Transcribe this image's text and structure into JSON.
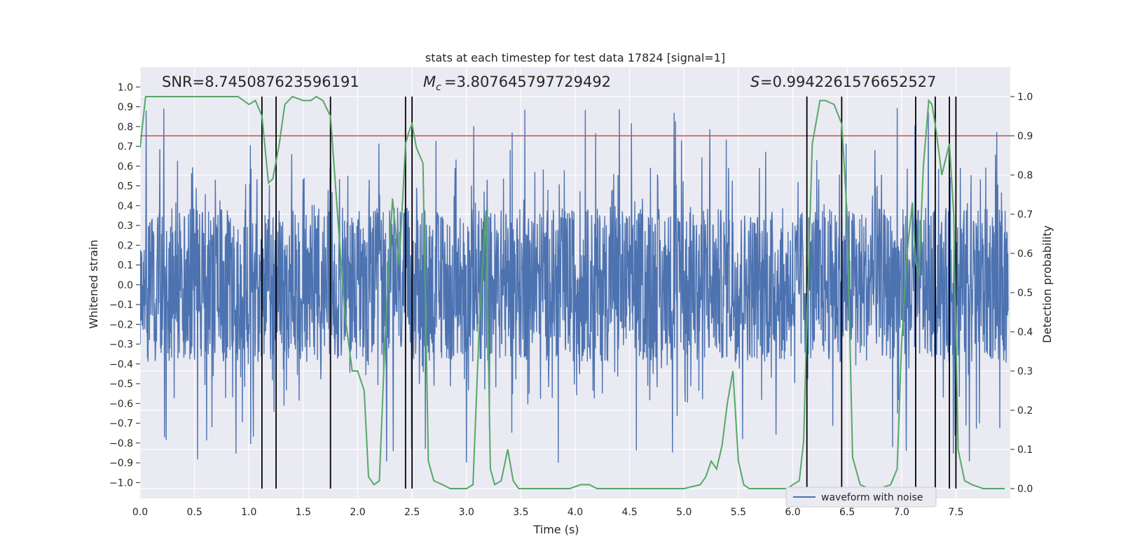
{
  "chart_data": {
    "type": "line",
    "title": "stats at each timestep for test data 17824 [signal=1]",
    "xlabel": "Time (s)",
    "ylabel": "Whitened strain",
    "y2label": "Detection probability",
    "xlim": [
      0.0,
      8.0
    ],
    "ylim": [
      -1.08,
      1.1
    ],
    "y2lim": [
      -0.025,
      1.075
    ],
    "x_ticks": [
      0.0,
      0.5,
      1.0,
      1.5,
      2.0,
      2.5,
      3.0,
      3.5,
      4.0,
      4.5,
      5.0,
      5.5,
      6.0,
      6.5,
      7.0,
      7.5
    ],
    "x_tick_labels": [
      "0.0",
      "0.5",
      "1.0",
      "1.5",
      "2.0",
      "2.5",
      "3.0",
      "3.5",
      "4.0",
      "4.5",
      "5.0",
      "5.5",
      "6.0",
      "6.5",
      "7.0",
      "7.5"
    ],
    "y_ticks": [
      1.0,
      0.9,
      0.8,
      0.7,
      0.6,
      0.5,
      0.4,
      0.3,
      0.2,
      0.1,
      0.0,
      -0.1,
      -0.2,
      -0.3,
      -0.4,
      -0.5,
      -0.6,
      -0.7,
      -0.8,
      -0.9,
      -1.0
    ],
    "y_tick_labels": [
      "1.0",
      "0.9",
      "0.8",
      "0.7",
      "0.6",
      "0.5",
      "0.4",
      "0.3",
      "0.2",
      "0.1",
      "0.0",
      "−0.1",
      "−0.2",
      "−0.3",
      "−0.4",
      "−0.5",
      "−0.6",
      "−0.7",
      "−0.8",
      "−0.9",
      "−1.0"
    ],
    "y2_ticks": [
      1.0,
      0.9,
      0.8,
      0.7,
      0.6,
      0.5,
      0.4,
      0.3,
      0.2,
      0.1,
      0.0
    ],
    "y2_tick_labels": [
      "1.0",
      "0.9",
      "0.8",
      "0.7",
      "0.6",
      "0.5",
      "0.4",
      "0.3",
      "0.2",
      "0.1",
      "0.0"
    ],
    "annotations": {
      "snr": "SNR=8.745087623596191",
      "mc": "=3.807645797729492",
      "s": "=0.9942261576652527"
    },
    "threshold": 0.9,
    "vertical_lines": [
      1.12,
      1.25,
      1.75,
      2.44,
      2.5,
      6.13,
      6.45,
      7.13,
      7.31,
      7.44,
      7.5
    ],
    "series": [
      {
        "name": "waveform with noise",
        "axis": "left",
        "color": "#4c72b0",
        "description": "dense whitened strain trace, amplitude mostly within ±0.4 with spikes to ±0.9"
      },
      {
        "name": "detection probability",
        "axis": "right",
        "color": "#55a868",
        "x": [
          0.0,
          0.05,
          0.1,
          0.25,
          0.5,
          0.75,
          0.9,
          1.0,
          1.06,
          1.12,
          1.18,
          1.22,
          1.28,
          1.33,
          1.4,
          1.5,
          1.57,
          1.62,
          1.68,
          1.75,
          1.82,
          1.88,
          1.95,
          2.0,
          2.06,
          2.1,
          2.15,
          2.2,
          2.25,
          2.32,
          2.38,
          2.42,
          2.44,
          2.47,
          2.5,
          2.54,
          2.6,
          2.65,
          2.7,
          2.78,
          2.85,
          2.92,
          3.0,
          3.06,
          3.12,
          3.18,
          3.22,
          3.26,
          3.32,
          3.38,
          3.43,
          3.48,
          3.56,
          3.65,
          3.75,
          3.85,
          3.95,
          4.05,
          4.13,
          4.2,
          4.3,
          4.4,
          4.6,
          4.8,
          5.0,
          5.15,
          5.2,
          5.25,
          5.3,
          5.35,
          5.4,
          5.45,
          5.5,
          5.55,
          5.6,
          5.7,
          5.85,
          5.95,
          6.0,
          6.06,
          6.1,
          6.13,
          6.18,
          6.25,
          6.3,
          6.38,
          6.45,
          6.5,
          6.55,
          6.62,
          6.7,
          6.8,
          6.9,
          6.96,
          7.0,
          7.05,
          7.1,
          7.13,
          7.16,
          7.2,
          7.25,
          7.28,
          7.32,
          7.37,
          7.44,
          7.48,
          7.52,
          7.58,
          7.65,
          7.75,
          7.85,
          7.95
        ],
        "y": [
          0.87,
          1.0,
          1.0,
          1.0,
          1.0,
          1.0,
          1.0,
          0.98,
          0.99,
          0.95,
          0.78,
          0.79,
          0.88,
          0.98,
          1.0,
          0.99,
          0.99,
          1.0,
          0.99,
          0.95,
          0.68,
          0.45,
          0.3,
          0.3,
          0.25,
          0.03,
          0.01,
          0.02,
          0.37,
          0.74,
          0.57,
          0.77,
          0.88,
          0.91,
          0.93,
          0.87,
          0.83,
          0.07,
          0.02,
          0.01,
          0.0,
          0.0,
          0.0,
          0.01,
          0.43,
          0.71,
          0.05,
          0.01,
          0.02,
          0.1,
          0.02,
          0.0,
          0.0,
          0.0,
          0.0,
          0.0,
          0.0,
          0.01,
          0.01,
          0.0,
          0.0,
          0.0,
          0.0,
          0.0,
          0.0,
          0.01,
          0.03,
          0.07,
          0.05,
          0.11,
          0.22,
          0.3,
          0.07,
          0.01,
          0.0,
          0.0,
          0.0,
          0.0,
          0.01,
          0.02,
          0.12,
          0.43,
          0.88,
          0.99,
          0.99,
          0.98,
          0.93,
          0.7,
          0.08,
          0.01,
          0.0,
          0.0,
          0.01,
          0.05,
          0.37,
          0.6,
          0.73,
          0.58,
          0.54,
          0.82,
          0.99,
          0.98,
          0.91,
          0.8,
          0.88,
          0.7,
          0.1,
          0.02,
          0.01,
          0.0,
          0.0,
          0.0
        ]
      }
    ],
    "legend": {
      "location": "lower-right",
      "entries": [
        "waveform with noise"
      ]
    }
  }
}
